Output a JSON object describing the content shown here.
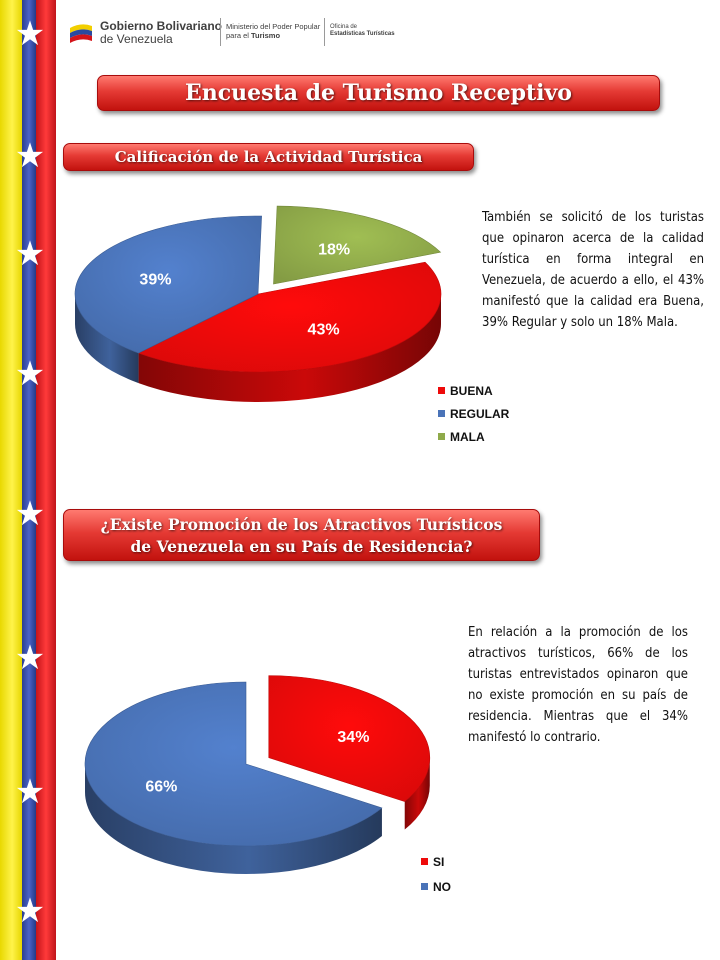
{
  "header": {
    "logo_line1_bold": "Gobierno Bolivariano",
    "logo_line2": "de Venezuela",
    "logo_ministry_line1": "Ministerio del Poder Popular",
    "logo_ministry_line2_prefix": "para el",
    "logo_ministry_line2_bold": "Turismo",
    "logo_office_line1": "Oficina de",
    "logo_office_line2": "Estadísticas Turísticas",
    "flag_colors": [
      "#f4e200",
      "#2f47a0",
      "#e0181e"
    ]
  },
  "title": "Encuesta de Turismo Receptivo",
  "section1": {
    "heading": "Calificación de la Actividad Turística",
    "paragraph": "También se solicitó de los turistas que opinaron acerca de la calidad turística en forma integral en Venezuela, de acuerdo a ello, el 43% manifestó que la calidad era Buena, 39% Regular y solo un 18% Mala."
  },
  "section2": {
    "heading_line1": "¿Existe Promoción de los Atractivos Turísticos",
    "heading_line2": "de Venezuela en su País de Residencia?",
    "paragraph": "En relación a la promoción de los atractivos turísticos, 66% de los turistas entrevistados opinaron que no existe promoción en su país de residencia. Mientras que el 34% manifestó lo contrario."
  },
  "chart_data": [
    {
      "type": "pie",
      "title": "",
      "categories": [
        "BUENA",
        "REGULAR",
        "MALA"
      ],
      "values": [
        43,
        39,
        18
      ],
      "data_labels": [
        "43%",
        "39%",
        "18%"
      ],
      "colors": [
        "#ee0a0a",
        "#4a73b8",
        "#8faa4a"
      ],
      "exploded": "MALA",
      "legend_position": "bottom-right"
    },
    {
      "type": "pie",
      "title": "",
      "categories": [
        "SI",
        "NO"
      ],
      "values": [
        34,
        66
      ],
      "data_labels": [
        "34%",
        "66%"
      ],
      "colors": [
        "#ee0a0a",
        "#4a73b8"
      ],
      "exploded": "SI",
      "legend_position": "bottom-right"
    }
  ]
}
